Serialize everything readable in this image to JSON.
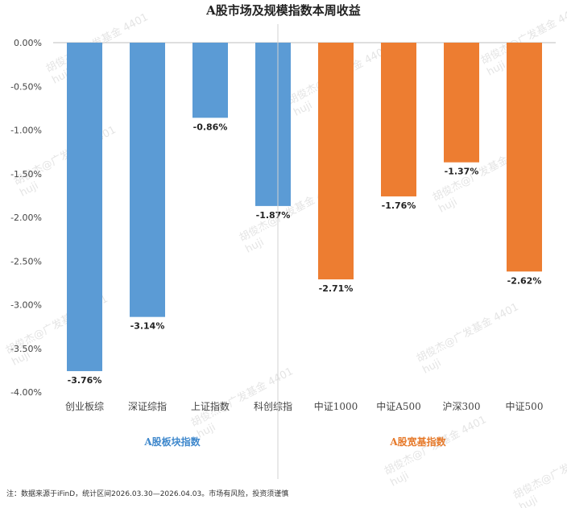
{
  "chart_data": {
    "type": "bar",
    "title": "A股市场及规模指数本周收益",
    "categories": [
      "创业板综",
      "深证综指",
      "上证指数",
      "科创综指",
      "中证1000",
      "中证A500",
      "沪深300",
      "中证500"
    ],
    "values": [
      -3.76,
      -3.14,
      -0.86,
      -1.87,
      -2.71,
      -1.76,
      -1.37,
      -2.62
    ],
    "value_labels": [
      "-3.76%",
      "-3.14%",
      "-0.86%",
      "-1.87%",
      "-2.71%",
      "-1.76%",
      "-1.37%",
      "-2.62%"
    ],
    "ylim": [
      -4.0,
      0.0
    ],
    "yticks": [
      0.0,
      -0.5,
      -1.0,
      -1.5,
      -2.0,
      -2.5,
      -3.0,
      -3.5,
      -4.0
    ],
    "ytick_labels": [
      "0.00%",
      "-0.50%",
      "-1.00%",
      "-1.50%",
      "-2.00%",
      "-2.50%",
      "-3.00%",
      "-3.50%",
      "-4.00%"
    ],
    "groups": [
      {
        "name": "A股板块指数",
        "count": 4,
        "color": "#5b9bd5"
      },
      {
        "name": "A股宽基指数",
        "count": 4,
        "color": "#ed7d31"
      }
    ],
    "xlabel": "",
    "ylabel": ""
  },
  "footnote": "注：数据来源于iFinD，统计区间2026.03.30—2026.04.03。市场有风险，投资须谨慎",
  "watermark": {
    "line1": "胡俊杰@广发基金 4401",
    "line2": "huji"
  }
}
